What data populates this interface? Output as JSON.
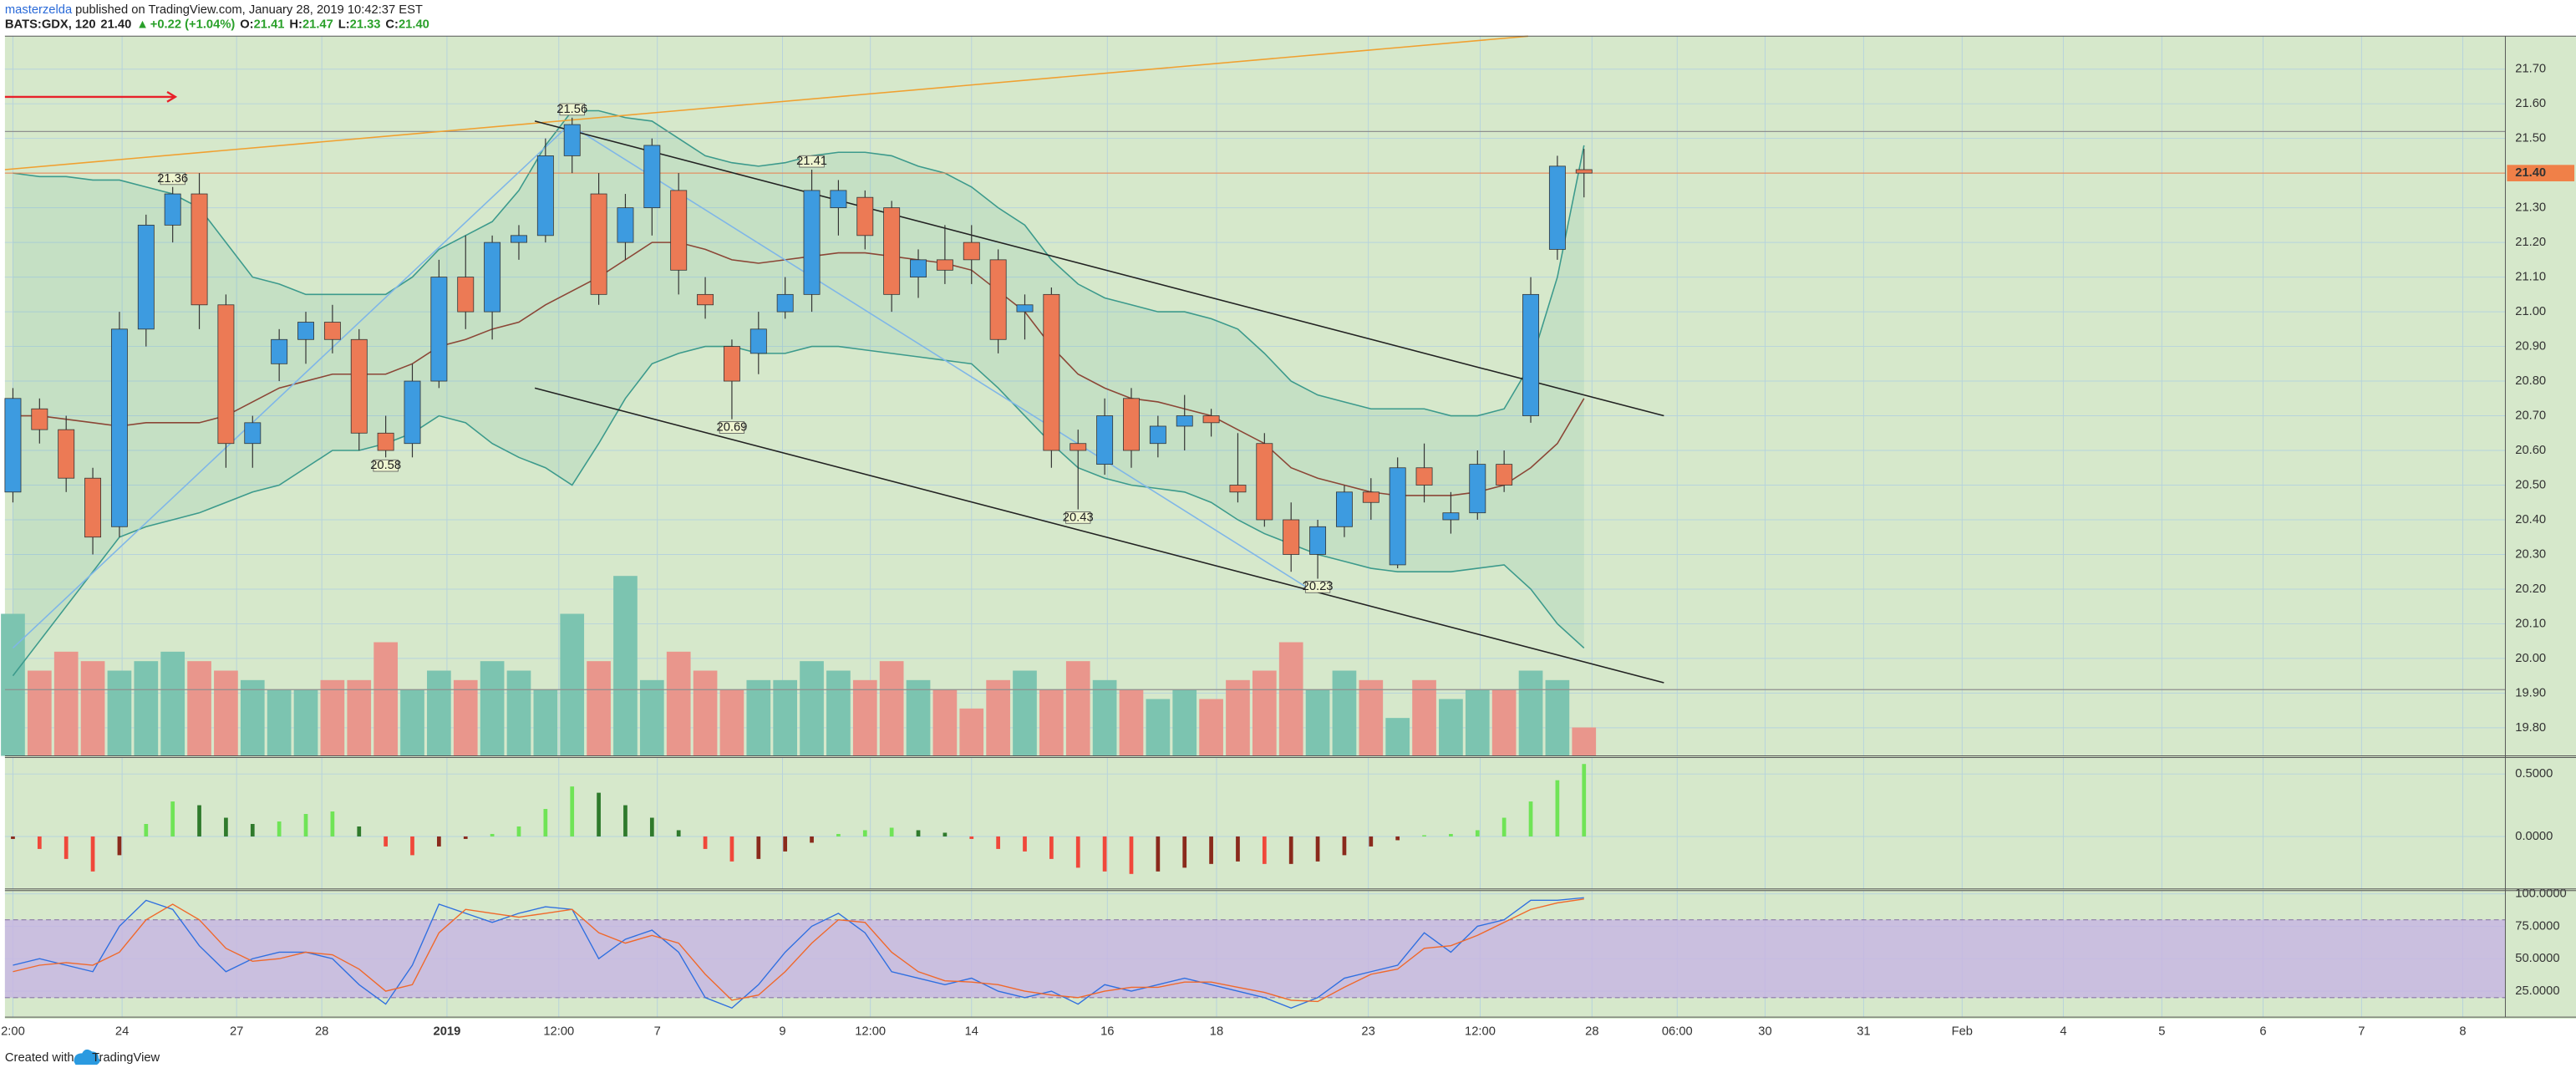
{
  "header": {
    "author": "masterzelda",
    "published": "published on TradingView.com, January 28, 2019 10:42:37 EST",
    "symbol": "BATS:GDX, 120",
    "price": "21.40",
    "arrow": "▲",
    "change": "+0.22 (+1.04%)",
    "o_label": "O:",
    "o": "21.41",
    "h_label": "H:",
    "h": "21.47",
    "l_label": "L:",
    "l": "21.33",
    "c_label": "C:",
    "c": "21.40"
  },
  "footer": {
    "created": "Created with",
    "brand": "TradingView"
  },
  "chart_data": [
    {
      "type": "candlestick",
      "xlim": [
        -0.3,
        93.6
      ],
      "xticks": [
        {
          "value": 0,
          "label": "2:00"
        },
        {
          "value": 4.1,
          "label": "24"
        },
        {
          "value": 8.4,
          "label": "27"
        },
        {
          "value": 11.6,
          "label": "28"
        },
        {
          "value": 16.3,
          "label": "2019"
        },
        {
          "value": 20.5,
          "label": "12:00"
        },
        {
          "value": 24.2,
          "label": "7"
        },
        {
          "value": 28.9,
          "label": "9"
        },
        {
          "value": 32.2,
          "label": "12:00"
        },
        {
          "value": 36.0,
          "label": "14"
        },
        {
          "value": 41.1,
          "label": "16"
        },
        {
          "value": 45.2,
          "label": "18"
        },
        {
          "value": 50.9,
          "label": "23"
        },
        {
          "value": 55.1,
          "label": "12:00"
        },
        {
          "value": 59.3,
          "label": "28"
        },
        {
          "value": 62.5,
          "label": "06:00"
        },
        {
          "value": 65.8,
          "label": "30"
        },
        {
          "value": 69.5,
          "label": "31"
        },
        {
          "value": 73.2,
          "label": "Feb"
        },
        {
          "value": 77.0,
          "label": "4"
        },
        {
          "value": 80.7,
          "label": "5"
        },
        {
          "value": 84.5,
          "label": "6"
        },
        {
          "value": 88.2,
          "label": "7"
        },
        {
          "value": 92.0,
          "label": "8"
        }
      ],
      "ylim": [
        19.719,
        21.795
      ],
      "yticks": [
        {
          "value": 21.7,
          "label": "21.70"
        },
        {
          "value": 21.6,
          "label": "21.60"
        },
        {
          "value": 21.5,
          "label": "21.50"
        },
        {
          "value": 21.4,
          "label": "21.40"
        },
        {
          "value": 21.3,
          "label": "21.30"
        },
        {
          "value": 21.2,
          "label": "21.20"
        },
        {
          "value": 21.1,
          "label": "21.10"
        },
        {
          "value": 21.0,
          "label": "21.00"
        },
        {
          "value": 20.9,
          "label": "20.90"
        },
        {
          "value": 20.8,
          "label": "20.80"
        },
        {
          "value": 20.7,
          "label": "20.70"
        },
        {
          "value": 20.6,
          "label": "20.60"
        },
        {
          "value": 20.5,
          "label": "20.50"
        },
        {
          "value": 20.4,
          "label": "20.40"
        },
        {
          "value": 20.3,
          "label": "20.30"
        },
        {
          "value": 20.2,
          "label": "20.20"
        },
        {
          "value": 20.1,
          "label": "20.10"
        },
        {
          "value": 20.0,
          "label": "20.00"
        },
        {
          "value": 19.9,
          "label": "19.90"
        },
        {
          "value": 19.8,
          "label": "19.80"
        }
      ],
      "grid": true,
      "up_color": "#3d9be0",
      "down_color": "#ec7a55",
      "open": [
        20.48,
        20.72,
        20.66,
        20.52,
        20.38,
        20.95,
        21.25,
        21.34,
        21.02,
        20.62,
        20.85,
        20.92,
        20.97,
        20.92,
        20.65,
        20.62,
        20.8,
        21.1,
        21.0,
        21.2,
        21.22,
        21.45,
        21.34,
        21.2,
        21.3,
        21.35,
        21.05,
        20.9,
        20.88,
        21.0,
        21.05,
        21.3,
        21.33,
        21.3,
        21.1,
        21.15,
        21.2,
        21.15,
        21.0,
        21.05,
        20.62,
        20.56,
        20.75,
        20.62,
        20.67,
        20.7,
        20.5,
        20.62,
        20.4,
        20.3,
        20.38,
        20.48,
        20.27,
        20.55,
        20.4,
        20.42,
        20.56,
        20.7,
        21.18,
        21.41
      ],
      "high": [
        20.78,
        20.75,
        20.7,
        20.55,
        21.0,
        21.28,
        21.36,
        21.4,
        21.05,
        20.7,
        20.95,
        21.0,
        21.02,
        20.95,
        20.7,
        20.85,
        21.15,
        21.22,
        21.22,
        21.25,
        21.5,
        21.56,
        21.4,
        21.34,
        21.5,
        21.4,
        21.1,
        20.92,
        21.0,
        21.1,
        21.41,
        21.38,
        21.35,
        21.32,
        21.18,
        21.25,
        21.25,
        21.18,
        21.05,
        21.07,
        20.66,
        20.75,
        20.78,
        20.7,
        20.76,
        20.72,
        20.65,
        20.65,
        20.45,
        20.4,
        20.5,
        20.52,
        20.58,
        20.62,
        20.48,
        20.6,
        20.6,
        21.1,
        21.45,
        21.47
      ],
      "low": [
        20.45,
        20.62,
        20.48,
        20.3,
        20.35,
        20.9,
        21.2,
        20.95,
        20.55,
        20.55,
        20.8,
        20.85,
        20.88,
        20.6,
        20.58,
        20.58,
        20.78,
        20.95,
        20.92,
        21.15,
        21.2,
        21.4,
        21.02,
        21.15,
        21.22,
        21.05,
        20.98,
        20.69,
        20.82,
        20.98,
        21.0,
        21.22,
        21.18,
        21.0,
        21.04,
        21.08,
        21.08,
        20.88,
        20.92,
        20.55,
        20.43,
        20.53,
        20.55,
        20.58,
        20.6,
        20.64,
        20.45,
        20.38,
        20.25,
        20.23,
        20.35,
        20.4,
        20.26,
        20.45,
        20.36,
        20.4,
        20.48,
        20.68,
        21.15,
        21.33
      ],
      "close": [
        20.75,
        20.66,
        20.52,
        20.35,
        20.95,
        21.25,
        21.34,
        21.02,
        20.62,
        20.68,
        20.92,
        20.97,
        20.92,
        20.65,
        20.6,
        20.8,
        21.1,
        21.0,
        21.2,
        21.22,
        21.45,
        21.54,
        21.05,
        21.3,
        21.48,
        21.12,
        21.02,
        20.8,
        20.95,
        21.05,
        21.35,
        21.35,
        21.22,
        21.05,
        21.15,
        21.12,
        21.15,
        20.92,
        21.02,
        20.6,
        20.6,
        20.7,
        20.6,
        20.67,
        20.7,
        20.68,
        20.48,
        20.4,
        20.3,
        20.38,
        20.48,
        20.45,
        20.55,
        20.5,
        20.42,
        20.56,
        20.5,
        21.05,
        21.42,
        21.4
      ],
      "volume": [
        75,
        45,
        55,
        50,
        45,
        50,
        55,
        50,
        45,
        40,
        35,
        35,
        40,
        40,
        60,
        35,
        45,
        40,
        50,
        45,
        35,
        75,
        50,
        95,
        40,
        55,
        45,
        35,
        40,
        40,
        50,
        45,
        40,
        50,
        40,
        35,
        25,
        40,
        45,
        35,
        50,
        40,
        35,
        30,
        35,
        30,
        40,
        45,
        60,
        35,
        45,
        40,
        20,
        40,
        30,
        35,
        35,
        45,
        40,
        15
      ],
      "volume_lim": [
        0,
        380
      ],
      "volume_up_color": "#7cc4b0",
      "volume_down_color": "#e9968c",
      "bands": {
        "color": "#3c9a8c",
        "fill": "#2f9c8a",
        "basis_color": "#8b4636",
        "upper": [
          21.4,
          21.39,
          21.39,
          21.38,
          21.38,
          21.36,
          21.34,
          21.3,
          21.2,
          21.1,
          21.08,
          21.05,
          21.05,
          21.05,
          21.05,
          21.1,
          21.18,
          21.22,
          21.26,
          21.35,
          21.48,
          21.58,
          21.58,
          21.56,
          21.55,
          21.5,
          21.45,
          21.43,
          21.42,
          21.43,
          21.45,
          21.46,
          21.46,
          21.45,
          21.42,
          21.4,
          21.36,
          21.3,
          21.25,
          21.15,
          21.08,
          21.04,
          21.02,
          21.0,
          21.0,
          20.98,
          20.95,
          20.88,
          20.8,
          20.76,
          20.74,
          20.72,
          20.72,
          20.72,
          20.7,
          20.7,
          20.72,
          20.85,
          21.1,
          21.48
        ],
        "basis": [
          20.7,
          20.7,
          20.69,
          20.68,
          20.67,
          20.68,
          20.68,
          20.68,
          20.7,
          20.74,
          20.78,
          20.8,
          20.82,
          20.82,
          20.82,
          20.85,
          20.9,
          20.92,
          20.95,
          20.97,
          21.02,
          21.06,
          21.1,
          21.15,
          21.2,
          21.2,
          21.18,
          21.15,
          21.14,
          21.15,
          21.16,
          21.17,
          21.17,
          21.16,
          21.15,
          21.14,
          21.12,
          21.06,
          21.0,
          20.9,
          20.82,
          20.78,
          20.75,
          20.74,
          20.72,
          20.7,
          20.66,
          20.62,
          20.55,
          20.52,
          20.5,
          20.48,
          20.47,
          20.47,
          20.47,
          20.48,
          20.5,
          20.55,
          20.62,
          20.75
        ],
        "lower": [
          19.95,
          20.05,
          20.15,
          20.25,
          20.35,
          20.38,
          20.4,
          20.42,
          20.45,
          20.48,
          20.5,
          20.55,
          20.6,
          20.6,
          20.62,
          20.65,
          20.7,
          20.68,
          20.62,
          20.58,
          20.55,
          20.5,
          20.62,
          20.75,
          20.85,
          20.88,
          20.9,
          20.9,
          20.88,
          20.88,
          20.9,
          20.9,
          20.89,
          20.88,
          20.87,
          20.86,
          20.85,
          20.78,
          20.7,
          20.62,
          20.55,
          20.52,
          20.5,
          20.49,
          20.48,
          20.45,
          20.4,
          20.36,
          20.33,
          20.3,
          20.28,
          20.26,
          20.25,
          20.25,
          20.25,
          20.26,
          20.27,
          20.2,
          20.1,
          20.03
        ]
      },
      "hlines": [
        {
          "y": 21.52,
          "color": "#8f8f8f"
        },
        {
          "y": 19.91,
          "color": "#8f8f8f"
        }
      ],
      "last": {
        "value": 21.4,
        "label": "21.40",
        "color": "#f08048"
      },
      "drawings": [
        {
          "kind": "trend",
          "color": "#f0a030",
          "points": [
            {
              "x": -0.3,
              "y": 21.41
            },
            {
              "x": 56.9,
              "y": 21.795
            }
          ]
        },
        {
          "kind": "trend",
          "color": "#7fb6e8",
          "points": [
            {
              "x": 0,
              "y": 20.03
            },
            {
              "x": 20.9,
              "y": 21.54
            },
            {
              "x": 48.9,
              "y": 20.19
            }
          ]
        },
        {
          "kind": "trend",
          "color": "#222222",
          "points": [
            {
              "x": 19.6,
              "y": 21.55
            },
            {
              "x": 62.0,
              "y": 20.7
            }
          ]
        },
        {
          "kind": "trend",
          "color": "#222222",
          "points": [
            {
              "x": 19.6,
              "y": 20.78
            },
            {
              "x": 62.0,
              "y": 19.93
            }
          ]
        },
        {
          "kind": "arrow",
          "color": "#e8202a",
          "points": [
            {
              "x": -0.3,
              "y": 21.62
            },
            {
              "x": 6.1,
              "y": 21.62
            }
          ]
        }
      ],
      "price_labels": [
        {
          "x": 6,
          "y": 21.36
        },
        {
          "x": 14,
          "y": 20.58
        },
        {
          "x": 21,
          "y": 21.56
        },
        {
          "x": 27,
          "y": 20.69
        },
        {
          "x": 30,
          "y": 21.41
        },
        {
          "x": 40,
          "y": 20.43
        },
        {
          "x": 49,
          "y": 20.23
        }
      ]
    },
    {
      "type": "histogram",
      "ylim": [
        -0.42,
        0.632
      ],
      "yticks": [
        {
          "value": 0.5,
          "label": "0.5000"
        },
        {
          "value": 0,
          "label": "0.0000"
        }
      ],
      "colors": {
        "rising_positive": "#6fe456",
        "falling_positive": "#2f7a2c",
        "falling_negative": "#f0483a",
        "rising_negative": "#8a2a1c"
      },
      "values": [
        -0.02,
        -0.1,
        -0.18,
        -0.28,
        -0.15,
        0.1,
        0.28,
        0.25,
        0.15,
        0.1,
        0.12,
        0.18,
        0.2,
        0.08,
        -0.08,
        -0.15,
        -0.08,
        -0.02,
        0.02,
        0.08,
        0.22,
        0.4,
        0.35,
        0.25,
        0.15,
        0.05,
        -0.1,
        -0.2,
        -0.18,
        -0.12,
        -0.05,
        0.02,
        0.05,
        0.07,
        0.05,
        0.03,
        -0.02,
        -0.1,
        -0.12,
        -0.18,
        -0.25,
        -0.28,
        -0.3,
        -0.28,
        -0.25,
        -0.22,
        -0.2,
        -0.22,
        -0.22,
        -0.2,
        -0.15,
        -0.08,
        -0.03,
        0.01,
        0.02,
        0.05,
        0.15,
        0.28,
        0.45,
        0.58
      ]
    },
    {
      "type": "line",
      "ylim": [
        5,
        102.5
      ],
      "yticks": [
        {
          "value": 100,
          "label": "100.0000"
        },
        {
          "value": 75,
          "label": "75.0000"
        },
        {
          "value": 50,
          "label": "50.0000"
        },
        {
          "value": 25,
          "label": "25.0000"
        }
      ],
      "band": [
        20,
        80
      ],
      "band_color": "#c7b4e4",
      "series": [
        {
          "color": "#2f6fe0",
          "values": [
            45,
            50,
            45,
            40,
            75,
            95,
            88,
            60,
            40,
            50,
            55,
            55,
            50,
            30,
            15,
            45,
            92,
            85,
            78,
            85,
            90,
            88,
            50,
            65,
            72,
            55,
            20,
            12,
            30,
            55,
            75,
            85,
            70,
            40,
            35,
            30,
            35,
            25,
            20,
            25,
            15,
            30,
            25,
            30,
            35,
            30,
            25,
            20,
            12,
            20,
            35,
            40,
            45,
            70,
            55,
            75,
            80,
            95,
            95,
            97
          ]
        },
        {
          "color": "#f0682a",
          "values": [
            40,
            45,
            47,
            45,
            55,
            80,
            92,
            80,
            58,
            48,
            50,
            55,
            53,
            42,
            25,
            30,
            70,
            88,
            85,
            82,
            85,
            88,
            70,
            62,
            68,
            62,
            38,
            18,
            22,
            40,
            62,
            80,
            78,
            55,
            40,
            33,
            32,
            30,
            25,
            22,
            20,
            25,
            28,
            28,
            32,
            32,
            28,
            24,
            18,
            17,
            28,
            38,
            42,
            58,
            60,
            68,
            78,
            88,
            93,
            96
          ]
        }
      ]
    }
  ]
}
